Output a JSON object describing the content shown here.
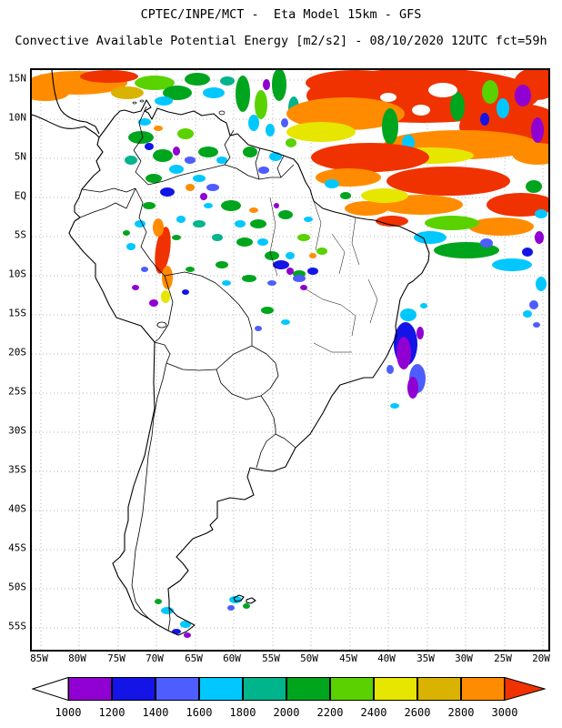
{
  "header": {
    "line1": "CPTEC/INPE/MCT -  Eta Model 15km - GFS",
    "line2": "Convective Available Potential Energy [m2/s2] - 08/10/2020 12UTC fct=59h"
  },
  "map": {
    "lat_labels": [
      "15N",
      "10N",
      "5N",
      "EQ",
      "5S",
      "10S",
      "15S",
      "20S",
      "25S",
      "30S",
      "35S",
      "40S",
      "45S",
      "50S",
      "55S"
    ],
    "lon_labels": [
      "85W",
      "80W",
      "75W",
      "70W",
      "65W",
      "60W",
      "55W",
      "50W",
      "45W",
      "40W",
      "35W",
      "30W",
      "25W",
      "20W"
    ]
  },
  "colorbar": {
    "labels": [
      "1000",
      "1200",
      "1400",
      "1600",
      "1800",
      "2000",
      "2200",
      "2400",
      "2600",
      "2800",
      "3000"
    ],
    "colors": [
      "#9000d2",
      "#1414e6",
      "#4d5dff",
      "#00c8ff",
      "#00b48c",
      "#00a51e",
      "#5ad200",
      "#e6e600",
      "#d9b300",
      "#ff8c00"
    ],
    "under_color": "#ffffff",
    "over_color": "#f03200"
  },
  "chart_data": {
    "type": "heatmap",
    "title": "Convective Available Potential Energy [m2/s2]",
    "source": "CPTEC/INPE/MCT",
    "model": "Eta Model 15km - GFS",
    "valid": "08/10/2020 12UTC fct=59h",
    "colorbar_levels": [
      1000,
      1200,
      1400,
      1600,
      1800,
      2000,
      2200,
      2400,
      2600,
      2800,
      3000
    ],
    "lat_range": [
      "15N",
      "55S"
    ],
    "lon_range": [
      "85W",
      "20W"
    ]
  }
}
